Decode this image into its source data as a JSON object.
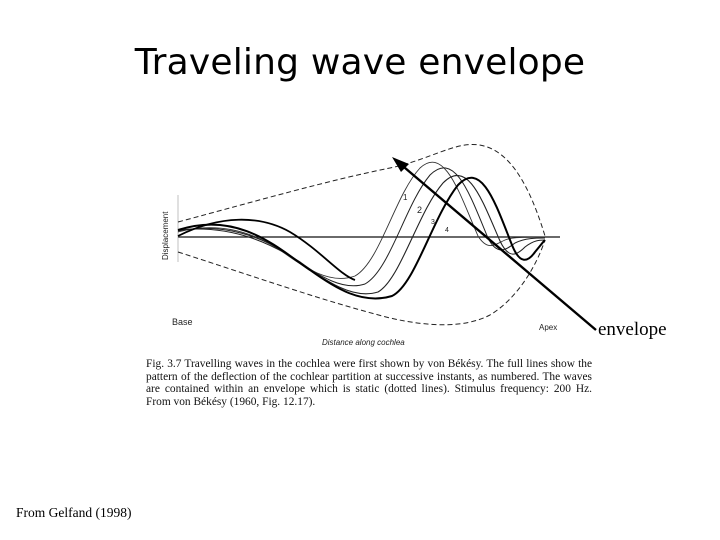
{
  "slide": {
    "title": "Traveling wave envelope"
  },
  "figure": {
    "y_axis_label": "Displacement",
    "x_axis_label": "Distance along cochlea",
    "base_label": "Base",
    "apex_label": "Apex",
    "wave_numbers": [
      "1",
      "2",
      "3",
      "4"
    ],
    "caption": "Fig. 3.7   Travelling waves in the cochlea were first shown by von Békésy. The full lines show the pattern of the deflection of the cochlear partition at successive instants, as numbered. The waves are contained within an envelope which is static (dotted lines). Stimulus frequency: 200 Hz. From von Békésy (1960, Fig. 12.17).",
    "pointer_label": "envelope"
  },
  "source_note": "From Gelfand (1998)"
}
